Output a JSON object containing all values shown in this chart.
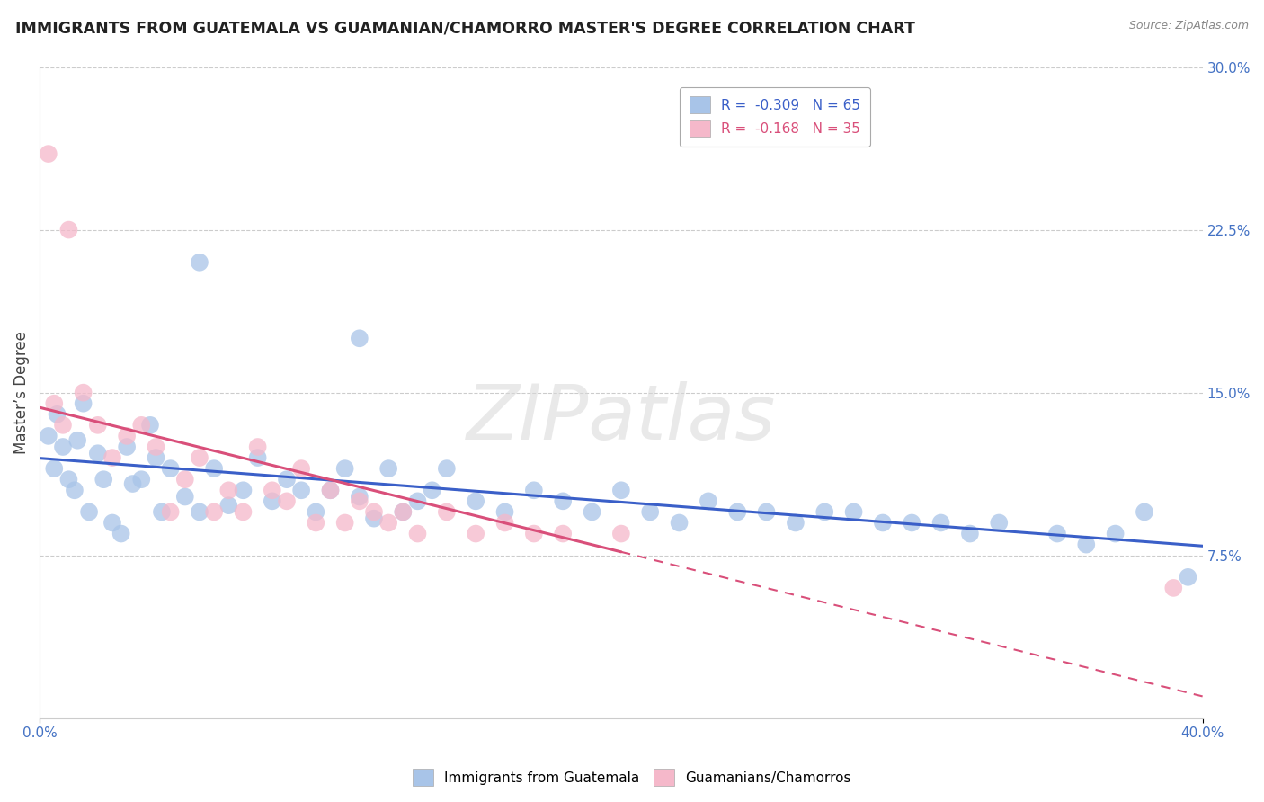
{
  "title": "IMMIGRANTS FROM GUATEMALA VS GUAMANIAN/CHAMORRO MASTER'S DEGREE CORRELATION CHART",
  "source": "Source: ZipAtlas.com",
  "ylabel": "Master’s Degree",
  "legend_entry1": "R =  -0.309   N = 65",
  "legend_entry2": "R =  -0.168   N = 35",
  "series1_label": "Immigrants from Guatemala",
  "series2_label": "Guamanians/Chamorros",
  "series1_color": "#a8c4e8",
  "series2_color": "#f5b8ca",
  "trendline1_color": "#3a5fc8",
  "trendline2_color": "#d94f7a",
  "watermark_color": "#d8d8d8",
  "xlim": [
    0.0,
    40.0
  ],
  "ylim": [
    0.0,
    30.0
  ],
  "background_color": "#ffffff",
  "grid_color": "#cccccc",
  "series1_x": [
    0.3,
    0.5,
    0.6,
    0.8,
    1.0,
    1.2,
    1.3,
    1.5,
    1.7,
    2.0,
    2.2,
    2.5,
    2.8,
    3.0,
    3.2,
    3.5,
    3.8,
    4.0,
    4.2,
    4.5,
    5.0,
    5.5,
    6.0,
    6.5,
    7.0,
    7.5,
    8.0,
    8.5,
    9.0,
    9.5,
    10.0,
    10.5,
    11.0,
    11.5,
    12.0,
    12.5,
    13.0,
    13.5,
    14.0,
    15.0,
    16.0,
    17.0,
    18.0,
    19.0,
    20.0,
    21.0,
    22.0,
    23.0,
    24.0,
    25.0,
    26.0,
    27.0,
    28.0,
    29.0,
    30.0,
    31.0,
    32.0,
    33.0,
    35.0,
    36.0,
    37.0,
    38.0,
    39.5,
    5.5,
    11.0
  ],
  "series1_y": [
    13.0,
    11.5,
    14.0,
    12.5,
    11.0,
    10.5,
    12.8,
    14.5,
    9.5,
    12.2,
    11.0,
    9.0,
    8.5,
    12.5,
    10.8,
    11.0,
    13.5,
    12.0,
    9.5,
    11.5,
    10.2,
    9.5,
    11.5,
    9.8,
    10.5,
    12.0,
    10.0,
    11.0,
    10.5,
    9.5,
    10.5,
    11.5,
    10.2,
    9.2,
    11.5,
    9.5,
    10.0,
    10.5,
    11.5,
    10.0,
    9.5,
    10.5,
    10.0,
    9.5,
    10.5,
    9.5,
    9.0,
    10.0,
    9.5,
    9.5,
    9.0,
    9.5,
    9.5,
    9.0,
    9.0,
    9.0,
    8.5,
    9.0,
    8.5,
    8.0,
    8.5,
    9.5,
    6.5,
    21.0,
    17.5
  ],
  "series2_x": [
    0.3,
    0.5,
    0.8,
    1.0,
    1.5,
    2.0,
    2.5,
    3.0,
    3.5,
    4.0,
    4.5,
    5.0,
    5.5,
    6.0,
    6.5,
    7.0,
    7.5,
    8.0,
    8.5,
    9.0,
    9.5,
    10.0,
    10.5,
    11.0,
    11.5,
    12.0,
    12.5,
    13.0,
    14.0,
    15.0,
    16.0,
    17.0,
    18.0,
    20.0,
    39.0
  ],
  "series2_y": [
    26.0,
    14.5,
    13.5,
    22.5,
    15.0,
    13.5,
    12.0,
    13.0,
    13.5,
    12.5,
    9.5,
    11.0,
    12.0,
    9.5,
    10.5,
    9.5,
    12.5,
    10.5,
    10.0,
    11.5,
    9.0,
    10.5,
    9.0,
    10.0,
    9.5,
    9.0,
    9.5,
    8.5,
    9.5,
    8.5,
    9.0,
    8.5,
    8.5,
    8.5,
    6.0
  ]
}
